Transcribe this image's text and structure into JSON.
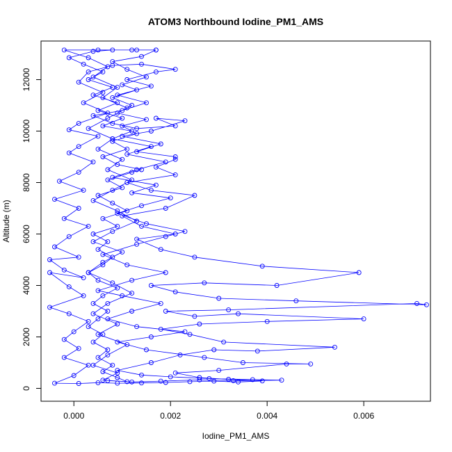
{
  "chart_data": {
    "type": "line",
    "title": "ATOM3 Northbound Iodine_PM1_AMS",
    "xlabel": "Iodine_PM1_AMS",
    "ylabel": "Altitude (m)",
    "xlim": [
      -0.00068,
      0.00738
    ],
    "ylim": [
      -500,
      13500
    ],
    "x_ticks": [
      0.0,
      0.002,
      0.004,
      0.006
    ],
    "x_tick_labels": [
      "0.000",
      "0.002",
      "0.004",
      "0.006"
    ],
    "y_ticks": [
      0,
      2000,
      4000,
      6000,
      8000,
      10000,
      12000
    ],
    "y_tick_labels": [
      "0",
      "2000",
      "4000",
      "6000",
      "8000",
      "10000",
      "12000"
    ],
    "colors": {
      "series": "#0000ff"
    },
    "markers": "open-circle",
    "series": [
      {
        "points": [
          [
            0.0007,
            300
          ],
          [
            0.0011,
            260
          ],
          [
            0.0009,
            420
          ],
          [
            0.0006,
            650
          ],
          [
            0.0008,
            900
          ],
          [
            0.0005,
            1200
          ],
          [
            0.0007,
            1500
          ],
          [
            0.0004,
            1800
          ],
          [
            0.0006,
            2100
          ],
          [
            0.0003,
            2400
          ],
          [
            0.0005,
            2700
          ],
          [
            0.0007,
            3000
          ],
          [
            0.0004,
            3300
          ],
          [
            0.0006,
            3600
          ],
          [
            0.0009,
            3900
          ],
          [
            0.0005,
            4200
          ],
          [
            0.0003,
            4500
          ],
          [
            0.0006,
            4800
          ],
          [
            0.0008,
            5100
          ],
          [
            0.0005,
            5400
          ],
          [
            0.0007,
            5700
          ],
          [
            0.0004,
            6000
          ],
          [
            0.0009,
            6300
          ],
          [
            0.0006,
            6600
          ],
          [
            0.0011,
            6900
          ],
          [
            0.0008,
            7200
          ],
          [
            0.0005,
            7500
          ],
          [
            0.001,
            7800
          ],
          [
            0.0007,
            8100
          ],
          [
            0.0012,
            8400
          ],
          [
            0.0014,
            8500
          ],
          [
            0.0009,
            8700
          ],
          [
            0.0006,
            9000
          ],
          [
            0.0011,
            9300
          ],
          [
            0.0008,
            9600
          ],
          [
            0.0013,
            9900
          ],
          [
            0.001,
            10200
          ],
          [
            0.0015,
            10450
          ],
          [
            0.0009,
            10700
          ],
          [
            0.0012,
            11000
          ],
          [
            0.0008,
            11300
          ],
          [
            0.0013,
            11600
          ],
          [
            0.001,
            11800
          ],
          [
            0.0015,
            12100
          ],
          [
            0.0011,
            12400
          ],
          [
            0.0008,
            12700
          ],
          [
            0.0014,
            12900
          ],
          [
            0.0017,
            13150
          ],
          [
            0.0012,
            13150
          ],
          [
            0.0005,
            13150
          ],
          [
            -0.0002,
            13150
          ],
          [
            0.0003,
            12850
          ],
          [
            0.0007,
            12500
          ],
          [
            0.0004,
            12100
          ],
          [
            0.0009,
            11700
          ],
          [
            0.0006,
            11300
          ],
          [
            0.0011,
            10900
          ],
          [
            0.0007,
            10500
          ],
          [
            0.0003,
            10100
          ],
          [
            0.0008,
            9700
          ],
          [
            0.0005,
            9300
          ],
          [
            0.001,
            8900
          ],
          [
            0.0007,
            8500
          ],
          [
            0.0012,
            8100
          ],
          [
            0.0008,
            7700
          ],
          [
            0.0004,
            7300
          ],
          [
            0.0009,
            6900
          ],
          [
            0.0013,
            6500
          ],
          [
            0.0008,
            6100
          ],
          [
            0.0004,
            5700
          ],
          [
            0.001,
            5300
          ],
          [
            0.0006,
            4900
          ],
          [
            0.0003,
            4500
          ],
          [
            0.0008,
            4100
          ],
          [
            0.0012,
            3700
          ],
          [
            0.0007,
            3300
          ],
          [
            0.0004,
            2900
          ],
          [
            0.0009,
            2500
          ],
          [
            0.0005,
            2100
          ],
          [
            0.0011,
            1700
          ],
          [
            0.0007,
            1300
          ],
          [
            0.0004,
            900
          ],
          [
            0.0009,
            600
          ],
          [
            0.0006,
            320
          ],
          [
            0.0012,
            250
          ],
          [
            0.0018,
            280
          ],
          [
            0.0026,
            330
          ],
          [
            0.0033,
            300
          ],
          [
            0.0043,
            320
          ],
          [
            0.0037,
            340
          ],
          [
            0.0028,
            380
          ],
          [
            0.002,
            450
          ],
          [
            0.0014,
            520
          ],
          [
            0.0009,
            700
          ],
          [
            0.0016,
            1000
          ],
          [
            0.0022,
            1300
          ],
          [
            0.0029,
            1500
          ],
          [
            0.0038,
            1450
          ],
          [
            0.0054,
            1600
          ],
          [
            0.0031,
            1800
          ],
          [
            0.0024,
            2100
          ],
          [
            0.0018,
            2300
          ],
          [
            0.0026,
            2500
          ],
          [
            0.004,
            2600
          ],
          [
            0.006,
            2700
          ],
          [
            0.0034,
            2900
          ],
          [
            0.0025,
            2800
          ],
          [
            0.0019,
            3000
          ],
          [
            0.0032,
            3050
          ],
          [
            0.0071,
            3300
          ],
          [
            0.0073,
            3250
          ],
          [
            0.0046,
            3400
          ],
          [
            0.003,
            3500
          ],
          [
            0.0021,
            3750
          ],
          [
            0.0016,
            4000
          ],
          [
            0.0027,
            4100
          ],
          [
            0.0042,
            4000
          ],
          [
            0.0059,
            4500
          ],
          [
            0.0039,
            4750
          ],
          [
            0.0025,
            5100
          ],
          [
            0.0018,
            5400
          ],
          [
            0.0013,
            5800
          ],
          [
            0.0021,
            6000
          ],
          [
            0.0014,
            6300
          ],
          [
            0.001,
            6700
          ],
          [
            0.0019,
            7000
          ],
          [
            0.0025,
            7500
          ],
          [
            0.0016,
            7700
          ],
          [
            0.0011,
            8000
          ],
          [
            0.0021,
            8300
          ],
          [
            0.0017,
            8600
          ],
          [
            0.0021,
            8900
          ],
          [
            0.0021,
            9000
          ],
          [
            0.0013,
            9200
          ],
          [
            0.0018,
            9500
          ],
          [
            0.001,
            9800
          ],
          [
            0.0016,
            10000
          ],
          [
            0.0023,
            10400
          ],
          [
            0.0017,
            10500
          ],
          [
            0.0021,
            10200
          ],
          [
            0.0013,
            10100
          ],
          [
            0.0008,
            10300
          ],
          [
            0.0004,
            10600
          ],
          [
            0.001,
            10800
          ],
          [
            0.0015,
            11100
          ],
          [
            0.0009,
            11400
          ],
          [
            0.0016,
            11750
          ],
          [
            0.0011,
            12000
          ],
          [
            0.0017,
            12300
          ],
          [
            0.0021,
            12400
          ],
          [
            0.0014,
            12600
          ],
          [
            0.0008,
            12550
          ],
          [
            0.0003,
            12300
          ],
          [
            0.0001,
            11900
          ],
          [
            0.0006,
            11500
          ],
          [
            0.0002,
            11100
          ],
          [
            0.0007,
            10700
          ],
          [
            0.0001,
            10300
          ],
          [
            -0.0001,
            10050
          ],
          [
            0.0005,
            9800
          ],
          [
            0.0001,
            9400
          ],
          [
            -0.0001,
            9150
          ],
          [
            0.0004,
            8800
          ],
          [
            0.0001,
            8400
          ],
          [
            -0.0003,
            8050
          ],
          [
            0.0002,
            7700
          ],
          [
            -0.0004,
            7350
          ],
          [
            0.0001,
            7000
          ],
          [
            -0.0002,
            6600
          ],
          [
            0.0003,
            6300
          ],
          [
            -0.0001,
            5900
          ],
          [
            -0.0004,
            5500
          ],
          [
            0.0001,
            5100
          ],
          [
            -0.0005,
            5000
          ],
          [
            -0.0002,
            4600
          ],
          [
            0.0002,
            4300
          ],
          [
            -0.0005,
            4500
          ],
          [
            -0.0001,
            3950
          ],
          [
            0.0002,
            3600
          ],
          [
            -0.0005,
            3150
          ],
          [
            -0.0001,
            2900
          ],
          [
            0.0003,
            2600
          ],
          [
            0.0,
            2200
          ],
          [
            -0.0002,
            1900
          ],
          [
            0.0001,
            1550
          ],
          [
            -0.0002,
            1200
          ],
          [
            0.0003,
            900
          ],
          [
            0.0,
            500
          ],
          [
            -0.0004,
            200
          ],
          [
            0.0001,
            190
          ],
          [
            0.0005,
            220
          ],
          [
            0.0009,
            200
          ],
          [
            0.0014,
            210
          ],
          [
            0.0019,
            230
          ],
          [
            0.0024,
            260
          ],
          [
            0.0029,
            280
          ],
          [
            0.0034,
            250
          ],
          [
            0.0039,
            290
          ],
          [
            0.0032,
            350
          ],
          [
            0.0026,
            420
          ],
          [
            0.0021,
            600
          ],
          [
            0.003,
            700
          ],
          [
            0.0044,
            950
          ],
          [
            0.0049,
            950
          ],
          [
            0.0035,
            1000
          ],
          [
            0.0027,
            1200
          ],
          [
            0.0015,
            1500
          ],
          [
            0.0009,
            1800
          ],
          [
            0.0016,
            2000
          ],
          [
            0.0023,
            2200
          ],
          [
            0.0013,
            2400
          ],
          [
            0.0007,
            2700
          ],
          [
            0.0012,
            3000
          ],
          [
            0.0018,
            3300
          ],
          [
            0.001,
            3600
          ],
          [
            0.0005,
            3800
          ],
          [
            0.0012,
            4200
          ],
          [
            0.0019,
            4500
          ],
          [
            0.0011,
            4800
          ],
          [
            0.0006,
            5200
          ],
          [
            0.0013,
            5600
          ],
          [
            0.0019,
            5900
          ],
          [
            0.0023,
            6100
          ],
          [
            0.0015,
            6400
          ],
          [
            0.0009,
            6800
          ],
          [
            0.0014,
            7100
          ],
          [
            0.002,
            7400
          ],
          [
            0.0012,
            7600
          ],
          [
            0.0017,
            7900
          ],
          [
            0.0008,
            8200
          ],
          [
            0.0013,
            8500
          ],
          [
            0.0019,
            8800
          ],
          [
            0.0011,
            9100
          ],
          [
            0.0016,
            9400
          ],
          [
            0.0008,
            9700
          ],
          [
            0.0012,
            10000
          ],
          [
            0.0006,
            10200
          ],
          [
            0.001,
            10500
          ],
          [
            0.0005,
            10800
          ],
          [
            0.0009,
            11100
          ],
          [
            0.0004,
            11400
          ],
          [
            0.0008,
            11700
          ],
          [
            0.0003,
            12000
          ],
          [
            0.0006,
            12300
          ],
          [
            0.0002,
            12600
          ],
          [
            -0.0001,
            12850
          ],
          [
            0.0004,
            13100
          ],
          [
            0.0008,
            13150
          ],
          [
            0.0013,
            13150
          ],
          [
            0.0017,
            13150
          ]
        ]
      }
    ]
  }
}
